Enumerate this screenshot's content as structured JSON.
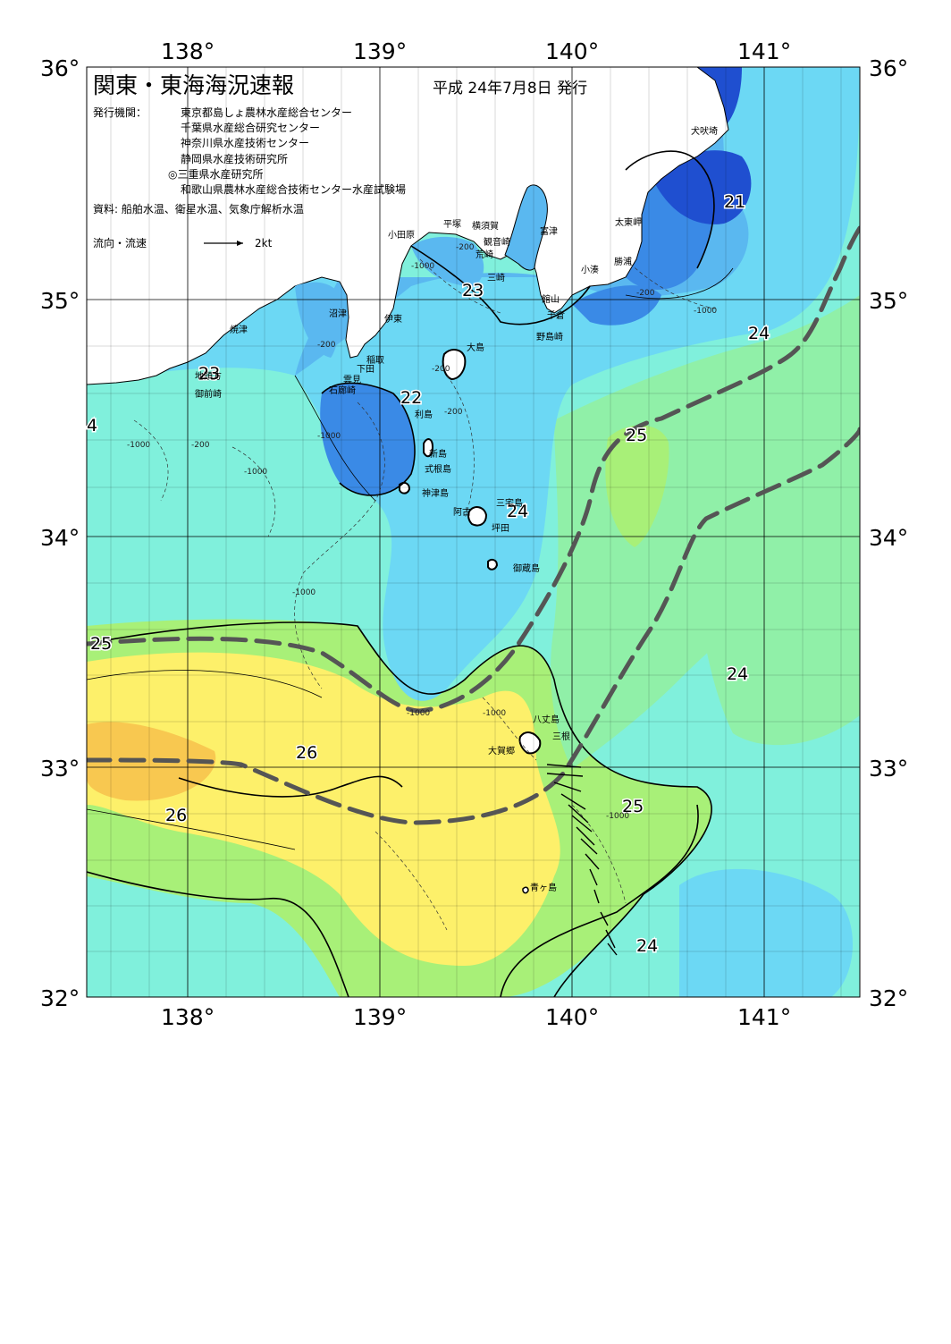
{
  "header": {
    "title": "関東・東海海況速報",
    "date": "平成 24年7月8日 発行",
    "issuer_label": "発行機関：",
    "issuers": [
      "東京都島しょ農林水産総合センター",
      "千葉県水産総合研究センター",
      "神奈川県水産技術センター",
      "静岡県水産技術研究所",
      "◎三重県水産研究所",
      "和歌山県農林水産総合技術センター水産試験場"
    ],
    "source": "資料: 船舶水温、衛星水温、気象庁解析水温",
    "flow_legend_label": "流向・流速",
    "flow_legend_unit": "2kt"
  },
  "axes": {
    "lon_labels": [
      "138°",
      "139°",
      "140°",
      "141°"
    ],
    "lat_labels_left": [
      "36°",
      "35°",
      "34°",
      "33°",
      "32°"
    ],
    "lat_labels_right": [
      "36°",
      "35°",
      "34°",
      "33°",
      "32°"
    ]
  },
  "isotherm_labels": [
    "21",
    "22",
    "23",
    "23",
    "24",
    "24",
    "24",
    "24",
    "25",
    "25",
    "25",
    "26",
    "26",
    "4",
    "24"
  ],
  "depth_labels": [
    "-200",
    "-200",
    "-1000",
    "-1000",
    "-200",
    "-1000",
    "-200",
    "-1000",
    "-1000",
    "-1000",
    "-1000",
    "-1000",
    "-1000",
    "-200",
    "-200"
  ],
  "places": [
    "犬吠埼",
    "太東岬",
    "勝浦",
    "小湊",
    "富津",
    "観音崎",
    "横須賀",
    "荒崎",
    "三崎",
    "館山",
    "千倉",
    "野島崎",
    "平塚",
    "小田原",
    "沼津",
    "伊東",
    "焼津",
    "稲取",
    "下田",
    "雲見",
    "石廊崎",
    "地頭方",
    "御前崎",
    "大島",
    "利島",
    "新島",
    "式根島",
    "神津島",
    "三宅島",
    "阿古",
    "坪田",
    "御蔵島",
    "八丈島",
    "三根",
    "大賀郷",
    "青ヶ島"
  ],
  "colors": {
    "land": "#ffffff",
    "sea_21": "#1f4fd0",
    "sea_22": "#3a8ae6",
    "sea_23": "#5ab8f0",
    "sea_23b": "#6cd8f4",
    "sea_24": "#80f0dc",
    "sea_24b": "#90f0a8",
    "sea_25": "#a8f078",
    "sea_26": "#fdf06a",
    "sea_27": "#f8c850",
    "kuroshio": "#555555"
  }
}
